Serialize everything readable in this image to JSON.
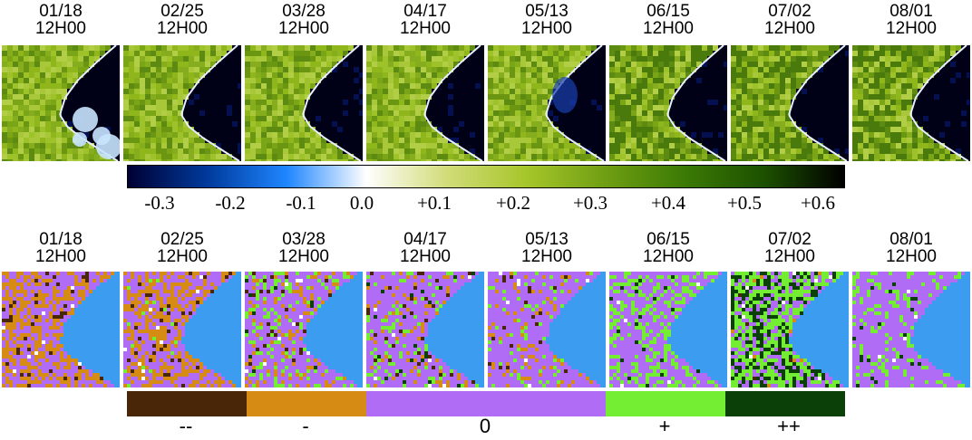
{
  "top_row": {
    "panels": [
      {
        "date": "01/18",
        "time": "12H00"
      },
      {
        "date": "02/25",
        "time": "12H00"
      },
      {
        "date": "03/28",
        "time": "12H00"
      },
      {
        "date": "04/17",
        "time": "12H00"
      },
      {
        "date": "05/13",
        "time": "12H00"
      },
      {
        "date": "06/15",
        "time": "12H00"
      },
      {
        "date": "07/02",
        "time": "12H00"
      },
      {
        "date": "08/01",
        "time": "12H00"
      }
    ],
    "colorbar": {
      "ticks": [
        "-0.3",
        "-0.2",
        "-0.1",
        "0.0",
        "+0.1",
        "+0.2",
        "+0.3",
        "+0.4",
        "+0.5",
        "+0.6"
      ],
      "colors": [
        "#000033",
        "#003a9c",
        "#1f86ff",
        "#ffffff",
        "#d2dc7a",
        "#a6c62a",
        "#6f9e12",
        "#3b7a05",
        "#1c5000",
        "#000000"
      ]
    }
  },
  "bottom_row": {
    "panels": [
      {
        "date": "01/18",
        "time": "12H00"
      },
      {
        "date": "02/25",
        "time": "12H00"
      },
      {
        "date": "03/28",
        "time": "12H00"
      },
      {
        "date": "04/17",
        "time": "12H00"
      },
      {
        "date": "05/13",
        "time": "12H00"
      },
      {
        "date": "06/15",
        "time": "12H00"
      },
      {
        "date": "07/02",
        "time": "12H00"
      },
      {
        "date": "08/01",
        "time": "12H00"
      }
    ],
    "legend": [
      {
        "label": "--",
        "color": "#4a2608"
      },
      {
        "label": "-",
        "color": "#d68b14"
      },
      {
        "label": "0",
        "color": "#b16cf5"
      },
      {
        "label": "+",
        "color": "#73ee33"
      },
      {
        "label": "++",
        "color": "#0b4008"
      }
    ],
    "sea_color": "#3c9cf0"
  }
}
